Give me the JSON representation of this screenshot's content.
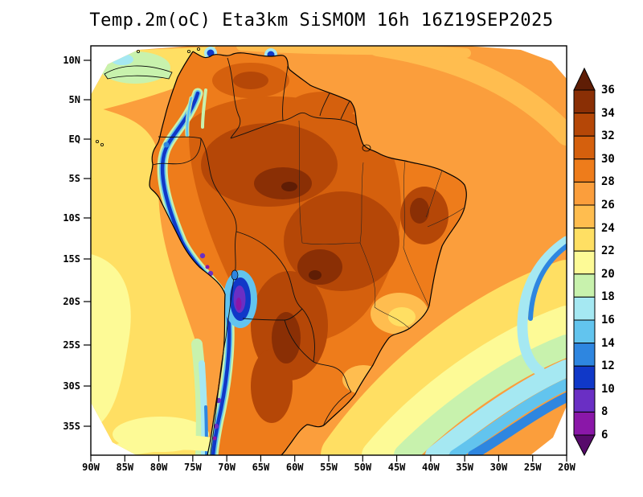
{
  "title": "Temp.2m(oC) Eta3km SiSMOM 16h 16Z19SEP2025",
  "axes": {
    "lat_labels": [
      "10N",
      "5N",
      "EQ",
      "5S",
      "10S",
      "15S",
      "20S",
      "25S",
      "30S",
      "35S"
    ],
    "lon_labels": [
      "90W",
      "85W",
      "80W",
      "75W",
      "70W",
      "65W",
      "60W",
      "55W",
      "50W",
      "45W",
      "40W",
      "35W",
      "30W",
      "25W",
      "20W"
    ]
  },
  "colorbar": {
    "tick_labels": [
      "36",
      "34",
      "32",
      "30",
      "28",
      "26",
      "24",
      "22",
      "20",
      "18",
      "16",
      "14",
      "12",
      "10",
      "8",
      "6"
    ],
    "palette": [
      {
        "range": ">36",
        "color": "#5f1d05"
      },
      {
        "range": "34-36",
        "color": "#8a2f05"
      },
      {
        "range": "32-34",
        "color": "#b54707"
      },
      {
        "range": "30-32",
        "color": "#d5600d"
      },
      {
        "range": "28-30",
        "color": "#ee7c1b"
      },
      {
        "range": "26-28",
        "color": "#fb9e3c"
      },
      {
        "range": "24-26",
        "color": "#ffbd4f"
      },
      {
        "range": "22-24",
        "color": "#ffdf63"
      },
      {
        "range": "20-22",
        "color": "#fdfa96"
      },
      {
        "range": "18-20",
        "color": "#c8f2ad"
      },
      {
        "range": "16-18",
        "color": "#a5e8f2"
      },
      {
        "range": "14-16",
        "color": "#62c4ee"
      },
      {
        "range": "12-14",
        "color": "#2e86e0"
      },
      {
        "range": "10-12",
        "color": "#1038c8"
      },
      {
        "range": "8-10",
        "color": "#6a2fc4"
      },
      {
        "range": "6-8",
        "color": "#8a17a8"
      },
      {
        "range": "<6",
        "color": "#570a6b"
      }
    ]
  },
  "chart_data": {
    "type": "heatmap",
    "title": "Temp.2m(oC) Eta3km SiSMOM 16h 16Z19SEP2025",
    "variable": "Temp.2m",
    "units": "oC",
    "model": "Eta3km",
    "system": "SiSMOM",
    "forecast_hour": "16h",
    "valid_time": "16Z19SEP2025",
    "region": "South America",
    "lon_tick_range": [
      "90W",
      "20W"
    ],
    "lat_tick_range": [
      "10N",
      "35S"
    ],
    "colorbar_levels": [
      36,
      34,
      32,
      30,
      28,
      26,
      24,
      22,
      20,
      18,
      16,
      14,
      12,
      10,
      8,
      6
    ],
    "colorbar_interval": 2,
    "field_summary": "Hottest air (30-36 oC) over interior Amazonia, central Brazil, the Guianas interior and the Chaco; 6-16 oC plus purple cold cores along the Andes cordillera; 24-28 oC over the tropical Atlantic; yellow-green-cyan-blue cool bands (12-22 oC) over the southeast Atlantic and off the Chilean coast."
  }
}
